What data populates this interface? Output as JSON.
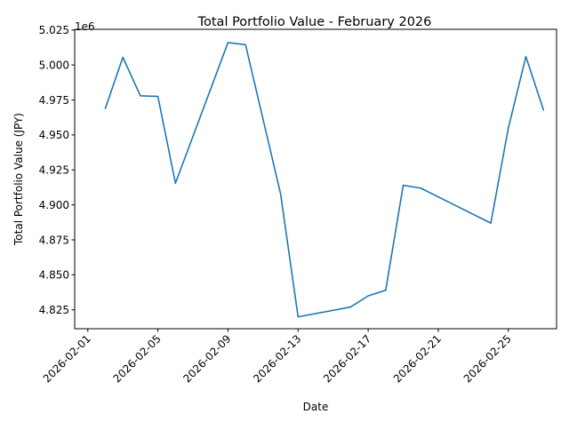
{
  "chart_data": {
    "type": "line",
    "title": "Total Portfolio Value - February 2026",
    "xlabel": "Date",
    "ylabel": "Total Portfolio Value (JPY)",
    "y_offset_label": "1e6",
    "y_scale": 1000000,
    "ylim": [
      4.8115,
      5.0255
    ],
    "xlim_days": [
      -0.75,
      26.75
    ],
    "x_start_date": "2026-02-01",
    "x_ticks": [
      {
        "day": 0,
        "label": "2026-02-01"
      },
      {
        "day": 4,
        "label": "2026-02-05"
      },
      {
        "day": 8,
        "label": "2026-02-09"
      },
      {
        "day": 12,
        "label": "2026-02-13"
      },
      {
        "day": 16,
        "label": "2026-02-17"
      },
      {
        "day": 20,
        "label": "2026-02-21"
      },
      {
        "day": 24,
        "label": "2026-02-25"
      }
    ],
    "y_ticks": [
      {
        "value": 4.825,
        "label": "4.825"
      },
      {
        "value": 4.85,
        "label": "4.850"
      },
      {
        "value": 4.875,
        "label": "4.875"
      },
      {
        "value": 4.9,
        "label": "4.900"
      },
      {
        "value": 4.925,
        "label": "4.925"
      },
      {
        "value": 4.95,
        "label": "4.950"
      },
      {
        "value": 4.975,
        "label": "4.975"
      },
      {
        "value": 5.0,
        "label": "5.000"
      },
      {
        "value": 5.025,
        "label": "5.025"
      }
    ],
    "series": [
      {
        "name": "Total Portfolio Value",
        "color": "#1f77b4",
        "x_days": [
          1,
          2,
          3,
          4,
          5,
          8,
          9,
          11,
          12,
          15,
          16,
          17,
          18,
          19,
          23,
          24,
          25,
          26
        ],
        "values": [
          4.969,
          5.0055,
          4.978,
          4.9775,
          4.9155,
          5.016,
          5.0145,
          4.908,
          4.82,
          4.827,
          4.835,
          4.839,
          4.914,
          4.912,
          4.887,
          4.955,
          5.006,
          4.968
        ]
      }
    ]
  }
}
